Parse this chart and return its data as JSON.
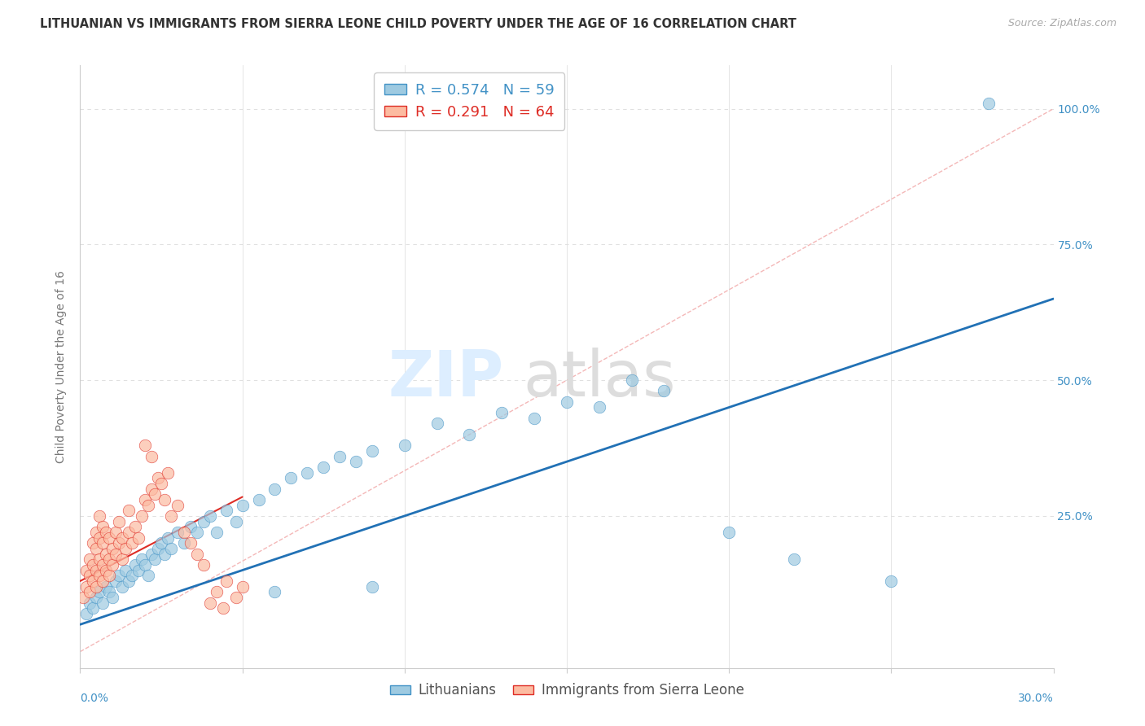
{
  "title": "LITHUANIAN VS IMMIGRANTS FROM SIERRA LEONE CHILD POVERTY UNDER THE AGE OF 16 CORRELATION CHART",
  "source": "Source: ZipAtlas.com",
  "ylabel": "Child Poverty Under the Age of 16",
  "legend_entries": [
    {
      "label": "R = 0.574   N = 59",
      "color": "#9ecae1"
    },
    {
      "label": "R = 0.291   N = 64",
      "color": "#fcbba1"
    }
  ],
  "legend_labels": [
    "Lithuanians",
    "Immigrants from Sierra Leone"
  ],
  "blue_color": "#9ecae1",
  "pink_color": "#fcbba1",
  "blue_edge": "#4292c6",
  "pink_edge": "#de2d26",
  "line_blue_color": "#2171b5",
  "line_pink_color": "#de2d26",
  "diag_color": "#f4b8b8",
  "xmin": 0.0,
  "xmax": 0.3,
  "ymin": -0.03,
  "ymax": 1.08,
  "right_tick_color": "#4292c6",
  "grid_color": "#e0e0e0",
  "title_fontsize": 10.5,
  "source_fontsize": 9,
  "tick_fontsize": 10,
  "label_fontsize": 10,
  "background_color": "#ffffff",
  "blue_line_x": [
    0.0,
    0.3
  ],
  "blue_line_y": [
    0.05,
    0.65
  ],
  "pink_line_x": [
    0.0,
    0.05
  ],
  "pink_line_y": [
    0.13,
    0.285
  ],
  "diag_line_x": [
    0.0,
    0.3
  ],
  "diag_line_y": [
    0.0,
    1.0
  ],
  "blue_scatter": [
    [
      0.002,
      0.07
    ],
    [
      0.003,
      0.09
    ],
    [
      0.004,
      0.08
    ],
    [
      0.005,
      0.1
    ],
    [
      0.006,
      0.11
    ],
    [
      0.007,
      0.09
    ],
    [
      0.008,
      0.12
    ],
    [
      0.009,
      0.11
    ],
    [
      0.01,
      0.1
    ],
    [
      0.011,
      0.13
    ],
    [
      0.012,
      0.14
    ],
    [
      0.013,
      0.12
    ],
    [
      0.014,
      0.15
    ],
    [
      0.015,
      0.13
    ],
    [
      0.016,
      0.14
    ],
    [
      0.017,
      0.16
    ],
    [
      0.018,
      0.15
    ],
    [
      0.019,
      0.17
    ],
    [
      0.02,
      0.16
    ],
    [
      0.021,
      0.14
    ],
    [
      0.022,
      0.18
    ],
    [
      0.023,
      0.17
    ],
    [
      0.024,
      0.19
    ],
    [
      0.025,
      0.2
    ],
    [
      0.026,
      0.18
    ],
    [
      0.027,
      0.21
    ],
    [
      0.028,
      0.19
    ],
    [
      0.03,
      0.22
    ],
    [
      0.032,
      0.2
    ],
    [
      0.034,
      0.23
    ],
    [
      0.036,
      0.22
    ],
    [
      0.038,
      0.24
    ],
    [
      0.04,
      0.25
    ],
    [
      0.042,
      0.22
    ],
    [
      0.045,
      0.26
    ],
    [
      0.048,
      0.24
    ],
    [
      0.05,
      0.27
    ],
    [
      0.055,
      0.28
    ],
    [
      0.06,
      0.3
    ],
    [
      0.065,
      0.32
    ],
    [
      0.07,
      0.33
    ],
    [
      0.075,
      0.34
    ],
    [
      0.08,
      0.36
    ],
    [
      0.085,
      0.35
    ],
    [
      0.09,
      0.37
    ],
    [
      0.1,
      0.38
    ],
    [
      0.11,
      0.42
    ],
    [
      0.12,
      0.4
    ],
    [
      0.13,
      0.44
    ],
    [
      0.14,
      0.43
    ],
    [
      0.15,
      0.46
    ],
    [
      0.16,
      0.45
    ],
    [
      0.17,
      0.5
    ],
    [
      0.18,
      0.48
    ],
    [
      0.2,
      0.22
    ],
    [
      0.22,
      0.17
    ],
    [
      0.25,
      0.13
    ],
    [
      0.28,
      1.01
    ],
    [
      0.06,
      0.11
    ],
    [
      0.09,
      0.12
    ]
  ],
  "pink_scatter": [
    [
      0.001,
      0.1
    ],
    [
      0.002,
      0.12
    ],
    [
      0.002,
      0.15
    ],
    [
      0.003,
      0.11
    ],
    [
      0.003,
      0.14
    ],
    [
      0.003,
      0.17
    ],
    [
      0.004,
      0.13
    ],
    [
      0.004,
      0.16
    ],
    [
      0.004,
      0.2
    ],
    [
      0.005,
      0.12
    ],
    [
      0.005,
      0.15
    ],
    [
      0.005,
      0.19
    ],
    [
      0.005,
      0.22
    ],
    [
      0.006,
      0.14
    ],
    [
      0.006,
      0.17
    ],
    [
      0.006,
      0.21
    ],
    [
      0.006,
      0.25
    ],
    [
      0.007,
      0.13
    ],
    [
      0.007,
      0.16
    ],
    [
      0.007,
      0.2
    ],
    [
      0.007,
      0.23
    ],
    [
      0.008,
      0.15
    ],
    [
      0.008,
      0.18
    ],
    [
      0.008,
      0.22
    ],
    [
      0.009,
      0.14
    ],
    [
      0.009,
      0.17
    ],
    [
      0.009,
      0.21
    ],
    [
      0.01,
      0.16
    ],
    [
      0.01,
      0.19
    ],
    [
      0.011,
      0.18
    ],
    [
      0.011,
      0.22
    ],
    [
      0.012,
      0.2
    ],
    [
      0.012,
      0.24
    ],
    [
      0.013,
      0.17
    ],
    [
      0.013,
      0.21
    ],
    [
      0.014,
      0.19
    ],
    [
      0.015,
      0.22
    ],
    [
      0.015,
      0.26
    ],
    [
      0.016,
      0.2
    ],
    [
      0.017,
      0.23
    ],
    [
      0.018,
      0.21
    ],
    [
      0.019,
      0.25
    ],
    [
      0.02,
      0.28
    ],
    [
      0.02,
      0.38
    ],
    [
      0.021,
      0.27
    ],
    [
      0.022,
      0.3
    ],
    [
      0.022,
      0.36
    ],
    [
      0.023,
      0.29
    ],
    [
      0.024,
      0.32
    ],
    [
      0.025,
      0.31
    ],
    [
      0.026,
      0.28
    ],
    [
      0.027,
      0.33
    ],
    [
      0.028,
      0.25
    ],
    [
      0.03,
      0.27
    ],
    [
      0.032,
      0.22
    ],
    [
      0.034,
      0.2
    ],
    [
      0.036,
      0.18
    ],
    [
      0.038,
      0.16
    ],
    [
      0.04,
      0.09
    ],
    [
      0.042,
      0.11
    ],
    [
      0.044,
      0.08
    ],
    [
      0.045,
      0.13
    ],
    [
      0.048,
      0.1
    ],
    [
      0.05,
      0.12
    ]
  ]
}
